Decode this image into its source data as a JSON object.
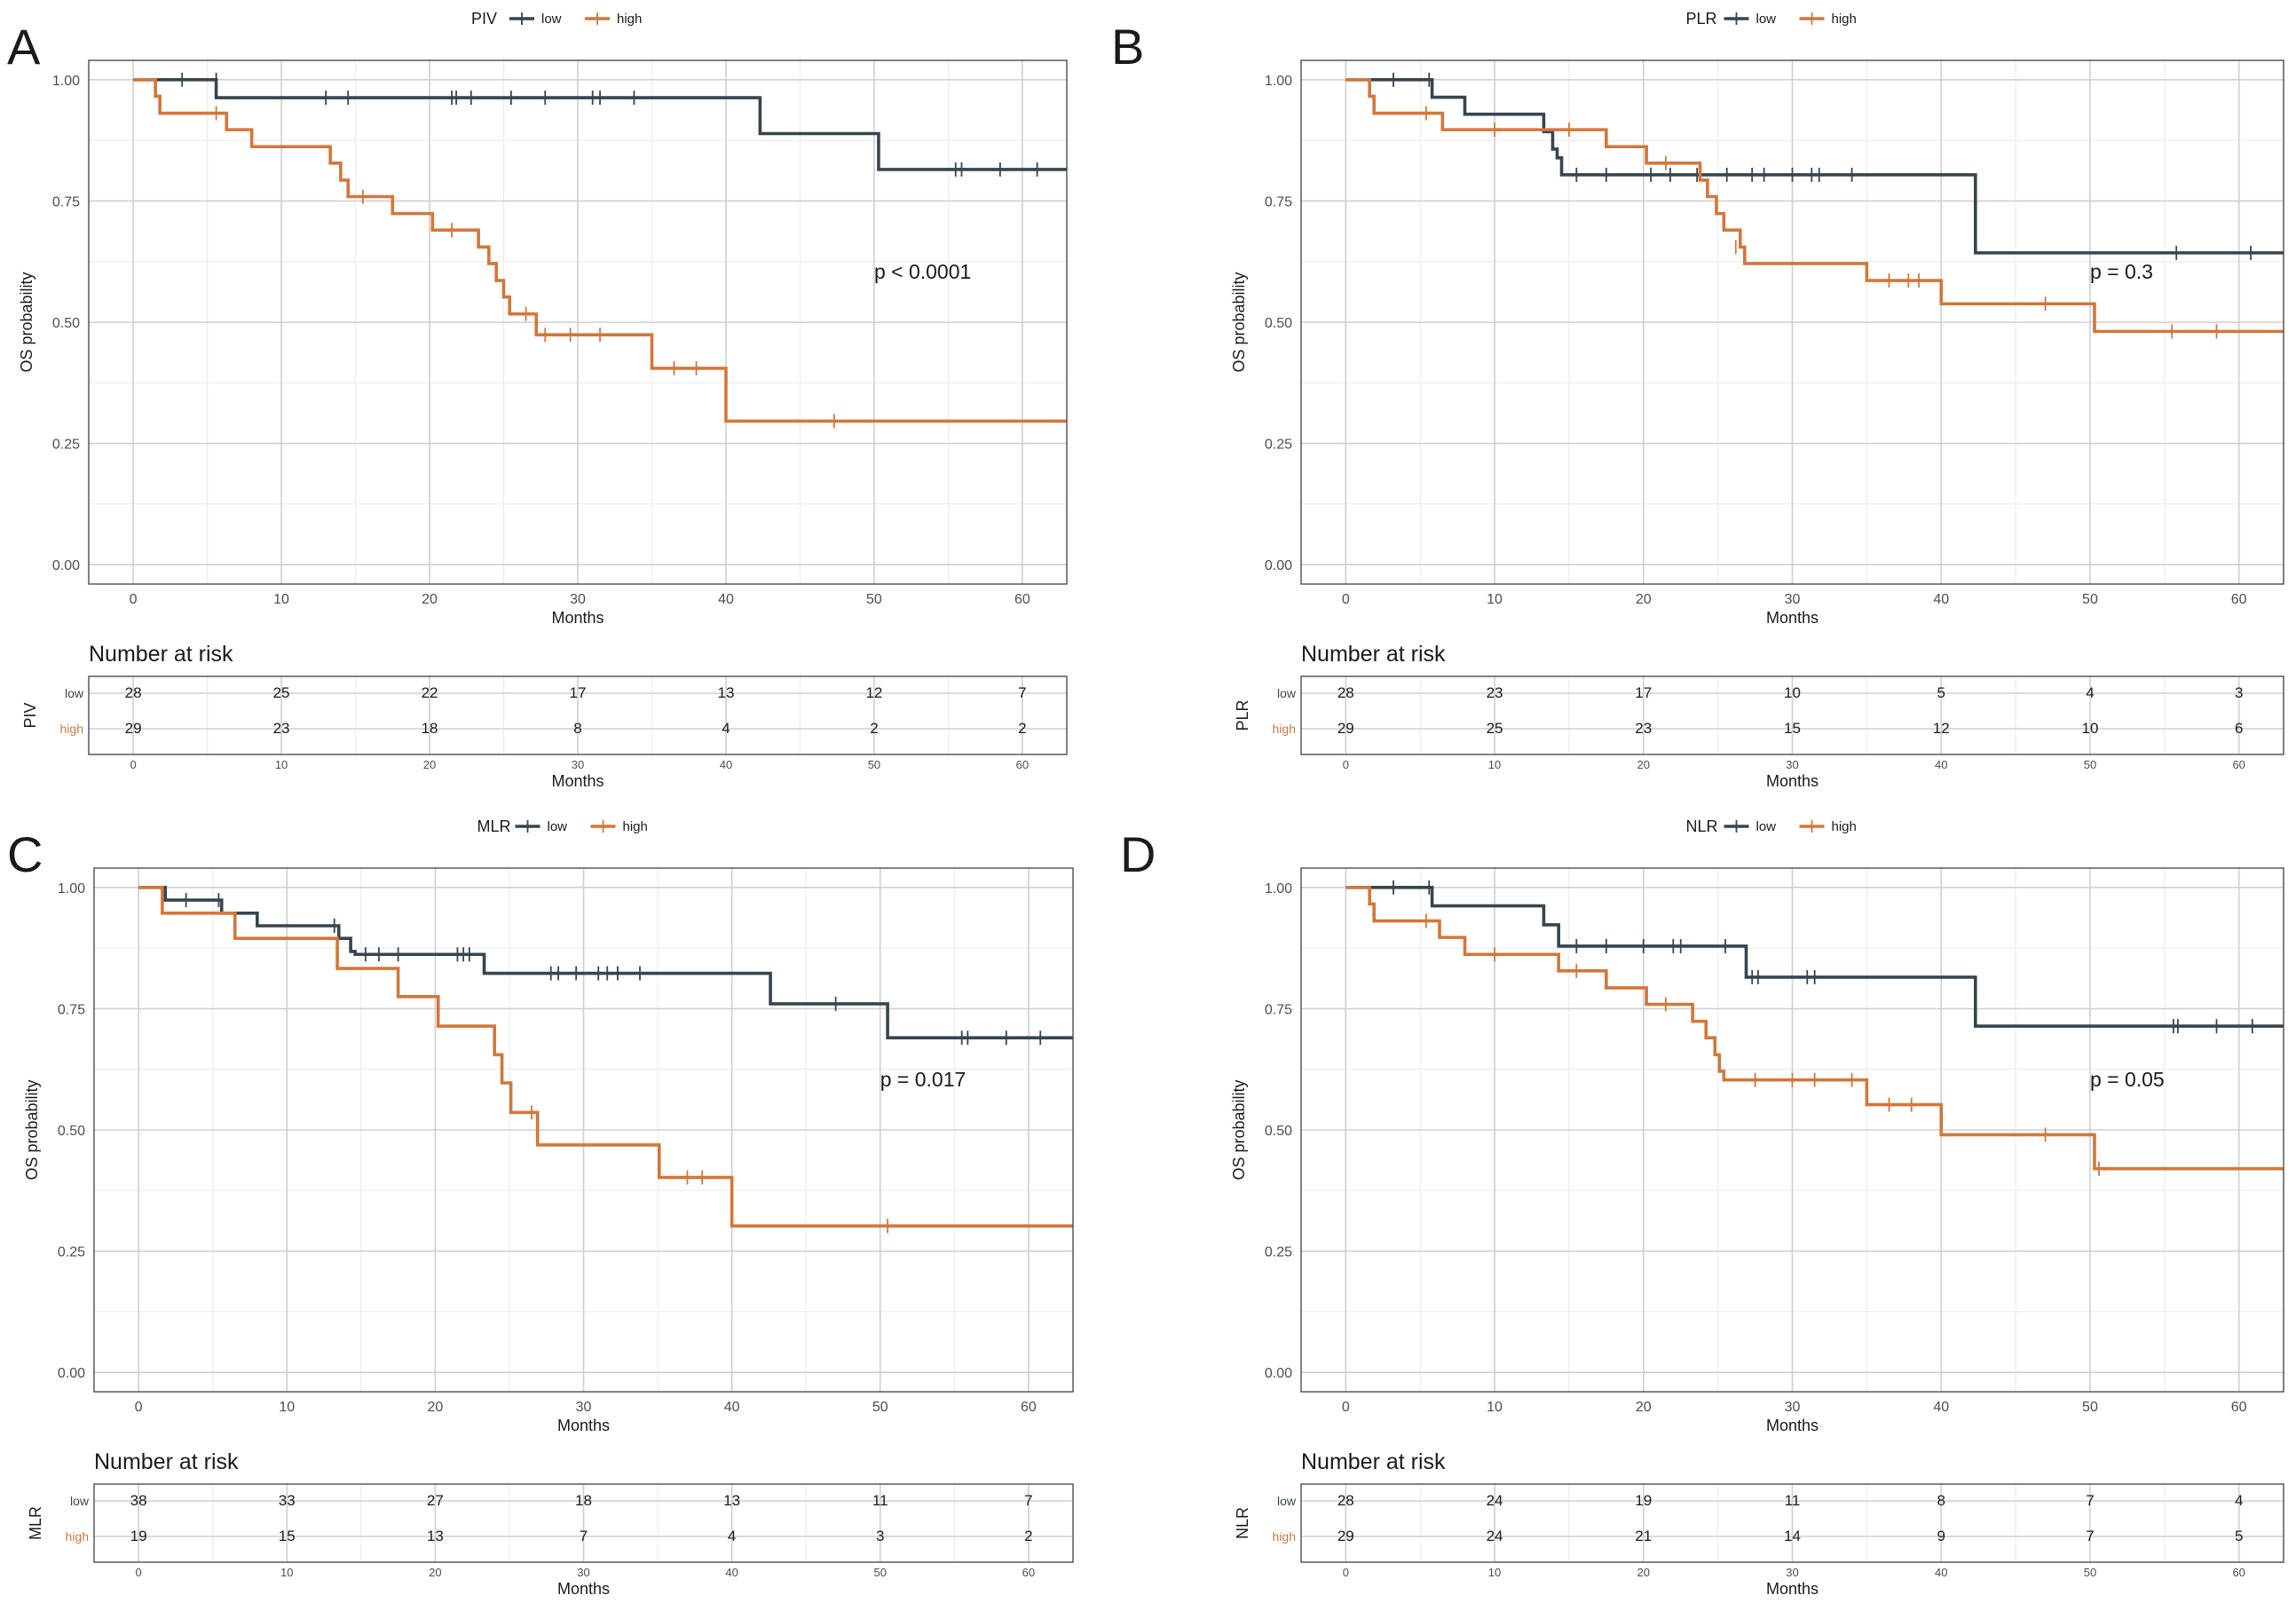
{
  "colors": {
    "low": "#36454F",
    "high": "#D2773A"
  },
  "x_title": "Months",
  "y_title": "OS probability",
  "risk_title": "Number at risk",
  "chart_data": [
    {
      "panel": "A",
      "type": "line",
      "variable": "PIV",
      "legend": [
        "low",
        "high"
      ],
      "legend_labels": {
        "low": "low",
        "high": "high"
      },
      "p_value": "p < 0.0001",
      "xlim": [
        -3,
        63
      ],
      "ylim": [
        -0.04,
        1.04
      ],
      "x_ticks": [
        "0",
        "10",
        "20",
        "30",
        "40",
        "50",
        "60"
      ],
      "y_ticks": [
        "0.00",
        "0.25",
        "0.50",
        "0.75",
        "1.00"
      ],
      "xlabel": "Months",
      "ylabel": "OS probability",
      "series": [
        {
          "name": "low",
          "steps": [
            [
              0,
              1.0
            ],
            [
              5.6,
              0.963
            ],
            [
              42.3,
              0.889
            ],
            [
              50.3,
              0.815
            ]
          ],
          "censored": [
            [
              3.3,
              1.0
            ],
            [
              5.6,
              1.0
            ],
            [
              13.0,
              0.963
            ],
            [
              14.5,
              0.963
            ],
            [
              21.5,
              0.963
            ],
            [
              21.8,
              0.963
            ],
            [
              22.8,
              0.963
            ],
            [
              25.5,
              0.963
            ],
            [
              27.8,
              0.963
            ],
            [
              31.0,
              0.963
            ],
            [
              31.5,
              0.963
            ],
            [
              33.8,
              0.963
            ],
            [
              55.5,
              0.815
            ],
            [
              55.9,
              0.815
            ],
            [
              58.5,
              0.815
            ],
            [
              61.0,
              0.815
            ]
          ]
        },
        {
          "name": "high",
          "steps": [
            [
              0,
              1.0
            ],
            [
              1.5,
              0.966
            ],
            [
              1.8,
              0.931
            ],
            [
              6.3,
              0.897
            ],
            [
              8.0,
              0.862
            ],
            [
              13.3,
              0.828
            ],
            [
              14.0,
              0.793
            ],
            [
              14.5,
              0.759
            ],
            [
              17.5,
              0.724
            ],
            [
              20.2,
              0.69
            ],
            [
              23.3,
              0.655
            ],
            [
              24.0,
              0.621
            ],
            [
              24.5,
              0.586
            ],
            [
              25.0,
              0.552
            ],
            [
              25.4,
              0.517
            ],
            [
              27.2,
              0.474
            ],
            [
              35.0,
              0.405
            ],
            [
              40.0,
              0.296
            ]
          ],
          "censored": [
            [
              5.6,
              0.931
            ],
            [
              15.5,
              0.759
            ],
            [
              21.5,
              0.69
            ],
            [
              26.5,
              0.517
            ],
            [
              27.8,
              0.474
            ],
            [
              29.5,
              0.474
            ],
            [
              31.5,
              0.474
            ],
            [
              36.5,
              0.405
            ],
            [
              38.0,
              0.405
            ],
            [
              47.3,
              0.296
            ]
          ]
        }
      ],
      "risk_table": {
        "groups": [
          "low",
          "high"
        ],
        "times": [
          "0",
          "10",
          "20",
          "30",
          "40",
          "50",
          "60"
        ],
        "low": [
          "28",
          "25",
          "22",
          "17",
          "13",
          "12",
          "7"
        ],
        "high": [
          "29",
          "23",
          "18",
          "8",
          "4",
          "2",
          "2"
        ]
      }
    },
    {
      "panel": "B",
      "type": "line",
      "variable": "PLR",
      "legend": [
        "low",
        "high"
      ],
      "legend_labels": {
        "low": "low",
        "high": "high"
      },
      "p_value": "p = 0.3",
      "xlim": [
        -3,
        63
      ],
      "ylim": [
        -0.04,
        1.04
      ],
      "x_ticks": [
        "0",
        "10",
        "20",
        "30",
        "40",
        "50",
        "60"
      ],
      "y_ticks": [
        "0.00",
        "0.25",
        "0.50",
        "0.75",
        "1.00"
      ],
      "xlabel": "Months",
      "ylabel": "OS probability",
      "series": [
        {
          "name": "low",
          "steps": [
            [
              0,
              1.0
            ],
            [
              5.8,
              0.964
            ],
            [
              8.0,
              0.929
            ],
            [
              13.3,
              0.893
            ],
            [
              13.9,
              0.857
            ],
            [
              14.2,
              0.839
            ],
            [
              14.5,
              0.804
            ],
            [
              42.3,
              0.643
            ]
          ],
          "censored": [
            [
              3.2,
              1.0
            ],
            [
              5.6,
              1.0
            ],
            [
              15.5,
              0.804
            ],
            [
              17.5,
              0.804
            ],
            [
              20.5,
              0.804
            ],
            [
              21.8,
              0.804
            ],
            [
              23.6,
              0.804
            ],
            [
              25.6,
              0.804
            ],
            [
              27.3,
              0.804
            ],
            [
              28.1,
              0.804
            ],
            [
              30.0,
              0.804
            ],
            [
              31.3,
              0.804
            ],
            [
              31.8,
              0.804
            ],
            [
              34.0,
              0.804
            ],
            [
              55.8,
              0.643
            ],
            [
              60.8,
              0.643
            ]
          ]
        },
        {
          "name": "high",
          "steps": [
            [
              0,
              1.0
            ],
            [
              1.6,
              0.966
            ],
            [
              1.9,
              0.931
            ],
            [
              6.5,
              0.897
            ],
            [
              17.5,
              0.862
            ],
            [
              20.2,
              0.828
            ],
            [
              23.8,
              0.793
            ],
            [
              24.3,
              0.759
            ],
            [
              24.9,
              0.724
            ],
            [
              25.4,
              0.69
            ],
            [
              26.5,
              0.655
            ],
            [
              26.8,
              0.621
            ],
            [
              35.0,
              0.586
            ],
            [
              40.0,
              0.538
            ],
            [
              50.3,
              0.481
            ]
          ],
          "censored": [
            [
              5.4,
              0.931
            ],
            [
              10.0,
              0.897
            ],
            [
              15.0,
              0.897
            ],
            [
              21.5,
              0.828
            ],
            [
              26.2,
              0.655
            ],
            [
              36.5,
              0.586
            ],
            [
              37.8,
              0.586
            ],
            [
              38.5,
              0.586
            ],
            [
              47.0,
              0.538
            ],
            [
              55.5,
              0.481
            ],
            [
              58.5,
              0.481
            ]
          ]
        }
      ],
      "risk_table": {
        "groups": [
          "low",
          "high"
        ],
        "times": [
          "0",
          "10",
          "20",
          "30",
          "40",
          "50",
          "60"
        ],
        "low": [
          "28",
          "23",
          "17",
          "10",
          "5",
          "4",
          "3"
        ],
        "high": [
          "29",
          "25",
          "23",
          "15",
          "12",
          "10",
          "6"
        ]
      }
    },
    {
      "panel": "C",
      "type": "line",
      "variable": "MLR",
      "legend": [
        "low",
        "high"
      ],
      "legend_labels": {
        "low": "low",
        "high": "high"
      },
      "p_value": "p = 0.017",
      "xlim": [
        -3,
        63
      ],
      "ylim": [
        -0.04,
        1.04
      ],
      "x_ticks": [
        "0",
        "10",
        "20",
        "30",
        "40",
        "50",
        "60"
      ],
      "y_ticks": [
        "0.00",
        "0.25",
        "0.50",
        "0.75",
        "1.00"
      ],
      "xlabel": "Months",
      "ylabel": "OS probability",
      "series": [
        {
          "name": "low",
          "steps": [
            [
              0,
              1.0
            ],
            [
              1.8,
              0.974
            ],
            [
              5.6,
              0.947
            ],
            [
              8.0,
              0.921
            ],
            [
              13.5,
              0.895
            ],
            [
              14.3,
              0.868
            ],
            [
              14.6,
              0.862
            ],
            [
              23.3,
              0.823
            ],
            [
              42.6,
              0.76
            ],
            [
              50.5,
              0.69
            ]
          ],
          "censored": [
            [
              3.2,
              0.974
            ],
            [
              5.4,
              0.974
            ],
            [
              13.2,
              0.921
            ],
            [
              15.3,
              0.862
            ],
            [
              16.2,
              0.862
            ],
            [
              17.5,
              0.862
            ],
            [
              21.5,
              0.862
            ],
            [
              21.9,
              0.862
            ],
            [
              22.3,
              0.862
            ],
            [
              27.8,
              0.823
            ],
            [
              28.3,
              0.823
            ],
            [
              29.5,
              0.823
            ],
            [
              31.0,
              0.823
            ],
            [
              31.6,
              0.823
            ],
            [
              32.3,
              0.823
            ],
            [
              33.8,
              0.823
            ],
            [
              47.0,
              0.76
            ],
            [
              55.5,
              0.69
            ],
            [
              55.9,
              0.69
            ],
            [
              58.5,
              0.69
            ],
            [
              60.8,
              0.69
            ]
          ]
        },
        {
          "name": "high",
          "steps": [
            [
              0,
              1.0
            ],
            [
              1.6,
              0.947
            ],
            [
              6.5,
              0.895
            ],
            [
              13.4,
              0.833
            ],
            [
              17.5,
              0.775
            ],
            [
              20.2,
              0.714
            ],
            [
              24.0,
              0.655
            ],
            [
              24.5,
              0.597
            ],
            [
              25.1,
              0.536
            ],
            [
              26.9,
              0.469
            ],
            [
              35.1,
              0.402
            ],
            [
              40.0,
              0.302
            ]
          ],
          "censored": [
            [
              26.5,
              0.536
            ],
            [
              37.0,
              0.402
            ],
            [
              38.0,
              0.402
            ],
            [
              50.5,
              0.302
            ]
          ]
        }
      ],
      "risk_table": {
        "groups": [
          "low",
          "high"
        ],
        "times": [
          "0",
          "10",
          "20",
          "30",
          "40",
          "50",
          "60"
        ],
        "low": [
          "38",
          "33",
          "27",
          "18",
          "13",
          "11",
          "7"
        ],
        "high": [
          "19",
          "15",
          "13",
          "7",
          "4",
          "3",
          "2"
        ]
      }
    },
    {
      "panel": "D",
      "type": "line",
      "variable": "NLR",
      "legend": [
        "low",
        "high"
      ],
      "legend_labels": {
        "low": "low",
        "high": "high"
      },
      "p_value": "p = 0.05",
      "xlim": [
        -3,
        63
      ],
      "ylim": [
        -0.04,
        1.04
      ],
      "x_ticks": [
        "0",
        "10",
        "20",
        "30",
        "40",
        "50",
        "60"
      ],
      "y_ticks": [
        "0.00",
        "0.25",
        "0.50",
        "0.75",
        "1.00"
      ],
      "xlabel": "Months",
      "ylabel": "OS probability",
      "series": [
        {
          "name": "low",
          "steps": [
            [
              0,
              1.0
            ],
            [
              5.8,
              0.962
            ],
            [
              13.3,
              0.923
            ],
            [
              14.3,
              0.879
            ],
            [
              26.9,
              0.815
            ],
            [
              42.3,
              0.714
            ]
          ],
          "censored": [
            [
              3.2,
              1.0
            ],
            [
              5.6,
              1.0
            ],
            [
              15.5,
              0.879
            ],
            [
              17.5,
              0.879
            ],
            [
              20.0,
              0.879
            ],
            [
              22.0,
              0.879
            ],
            [
              22.5,
              0.879
            ],
            [
              25.5,
              0.879
            ],
            [
              27.3,
              0.815
            ],
            [
              27.7,
              0.815
            ],
            [
              31.0,
              0.815
            ],
            [
              31.5,
              0.815
            ],
            [
              55.6,
              0.714
            ],
            [
              55.9,
              0.714
            ],
            [
              58.5,
              0.714
            ],
            [
              60.9,
              0.714
            ]
          ]
        },
        {
          "name": "high",
          "steps": [
            [
              0,
              1.0
            ],
            [
              1.6,
              0.966
            ],
            [
              1.9,
              0.931
            ],
            [
              6.3,
              0.897
            ],
            [
              8.0,
              0.862
            ],
            [
              14.3,
              0.828
            ],
            [
              17.5,
              0.793
            ],
            [
              20.2,
              0.759
            ],
            [
              23.3,
              0.724
            ],
            [
              24.2,
              0.69
            ],
            [
              24.8,
              0.655
            ],
            [
              25.1,
              0.621
            ],
            [
              25.4,
              0.603
            ],
            [
              35.0,
              0.552
            ],
            [
              40.0,
              0.49
            ],
            [
              50.3,
              0.42
            ]
          ],
          "censored": [
            [
              5.4,
              0.931
            ],
            [
              10.0,
              0.862
            ],
            [
              15.5,
              0.828
            ],
            [
              21.5,
              0.759
            ],
            [
              27.5,
              0.603
            ],
            [
              30.0,
              0.603
            ],
            [
              31.5,
              0.603
            ],
            [
              34.0,
              0.603
            ],
            [
              36.5,
              0.552
            ],
            [
              38.0,
              0.552
            ],
            [
              47.0,
              0.49
            ],
            [
              50.6,
              0.42
            ]
          ]
        }
      ],
      "risk_table": {
        "groups": [
          "low",
          "high"
        ],
        "times": [
          "0",
          "10",
          "20",
          "30",
          "40",
          "50",
          "60"
        ],
        "low": [
          "28",
          "24",
          "19",
          "11",
          "8",
          "7",
          "4"
        ],
        "high": [
          "29",
          "24",
          "21",
          "14",
          "9",
          "7",
          "5"
        ]
      }
    }
  ]
}
